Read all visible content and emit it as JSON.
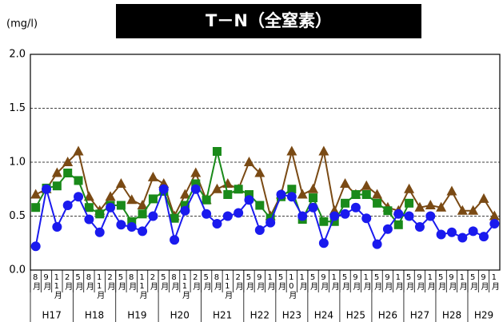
{
  "chart_data": {
    "type": "line",
    "title": "T－N（全窒素）",
    "y_label": "(mg/l)",
    "ylim": [
      0,
      2.0
    ],
    "yticks": [
      {
        "value": 0,
        "label": "0.0"
      },
      0.5,
      {
        "value": 1.0,
        "label": "1.0"
      },
      1.5,
      {
        "value": 2.0,
        "label": "2.0"
      }
    ],
    "grid": true,
    "groups": [
      {
        "label": "H17",
        "months": [
          "8月",
          "9月",
          "11月",
          "2月"
        ]
      },
      {
        "label": "H18",
        "months": [
          "5月",
          "8月",
          "11月",
          "2月"
        ]
      },
      {
        "label": "H19",
        "months": [
          "5月",
          "8月",
          "11月",
          "2月"
        ]
      },
      {
        "label": "H20",
        "months": [
          "5月",
          "8月",
          "11月",
          "2月"
        ]
      },
      {
        "label": "H21",
        "months": [
          "5月",
          "8月",
          "11月",
          "2月"
        ]
      },
      {
        "label": "H22",
        "months": [
          "5月",
          "9月",
          "1月"
        ]
      },
      {
        "label": "H23",
        "months": [
          "5月",
          "10月",
          "1月"
        ]
      },
      {
        "label": "H24",
        "months": [
          "5月",
          "9月",
          "1月"
        ]
      },
      {
        "label": "H25",
        "months": [
          "5月",
          "9月",
          "1月"
        ]
      },
      {
        "label": "H26",
        "months": [
          "5月",
          "9月",
          "1月"
        ]
      },
      {
        "label": "H27",
        "months": [
          "5月",
          "9月",
          "1月"
        ]
      },
      {
        "label": "H28",
        "months": [
          "5月",
          "9月",
          "1月"
        ]
      },
      {
        "label": "H29",
        "months": [
          "5月",
          "9月",
          "1月"
        ]
      }
    ],
    "series": [
      {
        "color": "#7a4a14",
        "marker": "triangle",
        "values": [
          0.7,
          0.75,
          0.9,
          1.0,
          1.1,
          0.68,
          0.55,
          0.68,
          0.8,
          0.65,
          0.6,
          0.86,
          0.8,
          0.5,
          0.7,
          0.9,
          0.65,
          0.75,
          0.8,
          0.75,
          1.0,
          0.9,
          0.5,
          0.7,
          1.1,
          0.7,
          0.75,
          1.1,
          0.55,
          0.8,
          0.7,
          0.78,
          0.7,
          0.58,
          0.55,
          0.75,
          0.58,
          0.6,
          0.58,
          0.73,
          0.55,
          0.55,
          0.66,
          0.5
        ]
      },
      {
        "color": "#1a8a1a",
        "marker": "square",
        "values": [
          0.58,
          0.76,
          0.78,
          0.9,
          0.83,
          0.58,
          0.52,
          0.6,
          0.6,
          0.45,
          0.52,
          0.66,
          0.73,
          0.48,
          0.6,
          0.8,
          0.65,
          1.1,
          0.7,
          0.75,
          0.7,
          0.6,
          0.48,
          0.68,
          0.75,
          0.47,
          0.67,
          0.45,
          0.45,
          0.62,
          0.7,
          0.7,
          0.62,
          0.55,
          0.42,
          0.62,
          null,
          null,
          null,
          null,
          null,
          null,
          null,
          null
        ]
      },
      {
        "color": "#1a1aee",
        "marker": "circle",
        "values": [
          0.22,
          0.75,
          0.4,
          0.6,
          0.68,
          0.47,
          0.35,
          0.58,
          0.42,
          0.4,
          0.36,
          0.5,
          0.75,
          0.28,
          0.55,
          0.75,
          0.52,
          0.43,
          0.5,
          0.53,
          0.65,
          0.37,
          0.44,
          0.7,
          0.68,
          0.5,
          0.58,
          0.25,
          0.5,
          0.52,
          0.58,
          0.48,
          0.24,
          0.38,
          0.52,
          0.5,
          0.4,
          0.5,
          0.33,
          0.35,
          0.3,
          0.36,
          0.31,
          0.43
        ]
      }
    ]
  }
}
